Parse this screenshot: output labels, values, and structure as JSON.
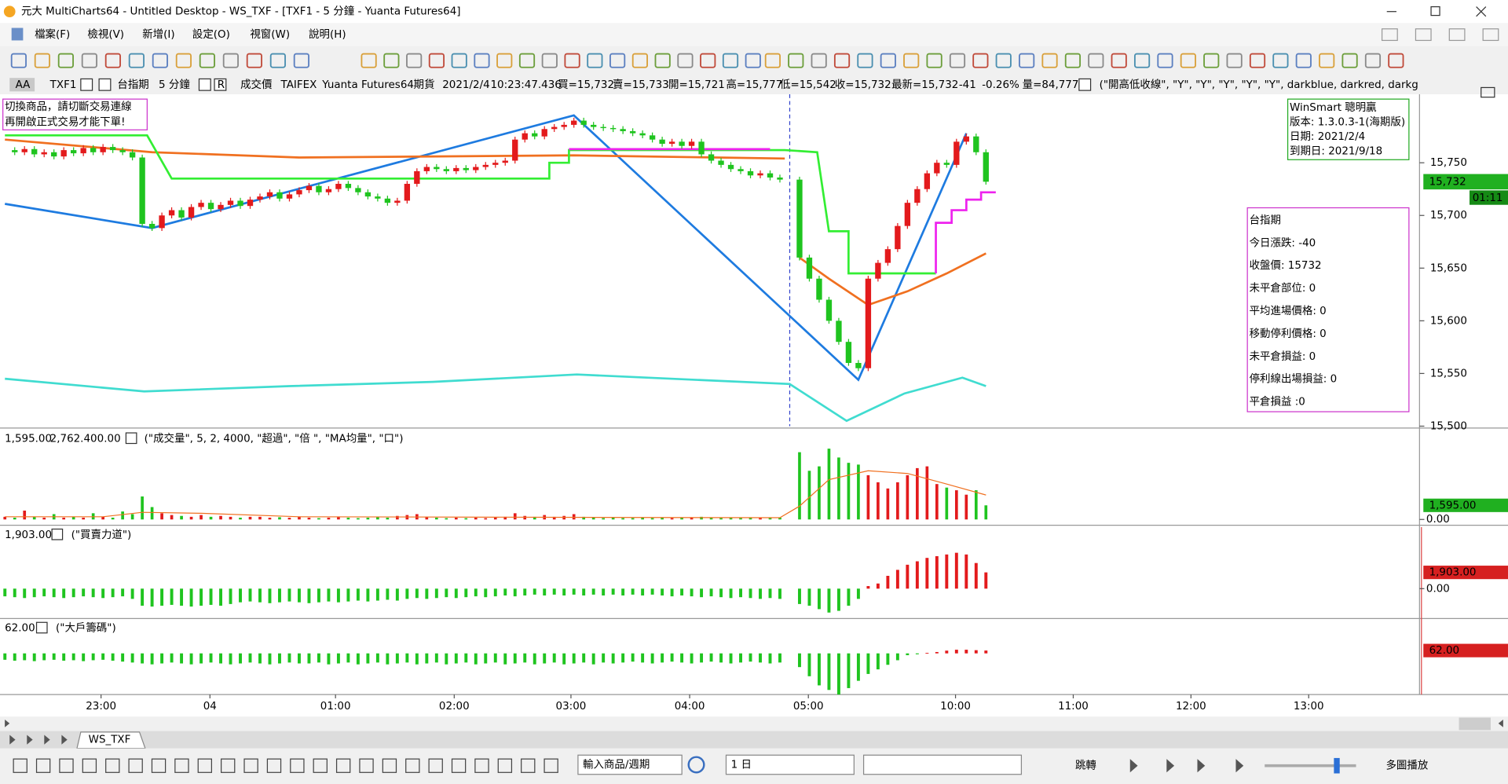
{
  "window": {
    "title": "元大 MultiCharts64 - Untitled Desktop - WS_TXF - [TXF1 - 5 分鐘 - Yuanta Futures64]"
  },
  "menu": [
    "檔案(F)",
    "檢視(V)",
    "新增(I)",
    "設定(O)",
    "視窗(W)",
    "說明(H)"
  ],
  "status": {
    "style": "AA",
    "symbol": "TXF1",
    "name": "台指期",
    "interval": "5 分鐘",
    "mode": "R",
    "field": "成交價",
    "exchange": "TAIFEX",
    "source": "Yuanta Futures64",
    "kind": "期貨",
    "date": "2021/2/4",
    "time": "10:23:47.436",
    "bid": "買=15,732",
    "ask": "賣=15,733",
    "open": "開=15,721",
    "high": "高=15,777",
    "low": "低=15,542",
    "close": "收=15,732",
    "last": "最新=15,732",
    "change": "-41",
    "change_pct": "-0.26%",
    "volume": "量=84,777",
    "study": "(\"開高低收線\", \"Y\", \"Y\", \"Y\", \"Y\", \"Y\", darkblue, darkred, darkg"
  },
  "warning": [
    "切換商品，請切斷交易連線",
    "再開啟正式交易才能下單!"
  ],
  "winsmart": [
    "WinSmart 聰明贏",
    "版本: 1.3.0.3-1(海期版)",
    "日期: 2021/2/4",
    "到期日: 2021/9/18"
  ],
  "info": [
    "台指期",
    "今日漲跌: -40",
    "收盤價: 15732",
    "未平倉部位: 0",
    "平均進場價格: 0",
    "移動停利價格: 0",
    "未平倉損益: 0",
    "停利線出場損益: 0",
    "平倉損益 :0"
  ],
  "chart_data": [
    {
      "type": "candlestick",
      "x": [
        0,
        1,
        2,
        3,
        4,
        5,
        6,
        7,
        8,
        9,
        10,
        11,
        12,
        13,
        14,
        15,
        16,
        17,
        18,
        19,
        20,
        21,
        22,
        23,
        24,
        25,
        26,
        27,
        28,
        29,
        30,
        31,
        32,
        33,
        34,
        35,
        36,
        37,
        38,
        39,
        40,
        41,
        42,
        43,
        44,
        45,
        46,
        47,
        48,
        49,
        50,
        51,
        52,
        53,
        54,
        55,
        56,
        57,
        58,
        59,
        60,
        61,
        62,
        63,
        64,
        65,
        66,
        67,
        68,
        69,
        70,
        71,
        72,
        73,
        74,
        75,
        76,
        77,
        78,
        79,
        80,
        81,
        82,
        83,
        84,
        85,
        86,
        87,
        88,
        89,
        90,
        91,
        92,
        93,
        94,
        95,
        96,
        97,
        98,
        99,
        100
      ],
      "close": [
        15762,
        15760,
        15763,
        15758,
        15760,
        15756,
        15762,
        15759,
        15764,
        15760,
        15765,
        15762,
        15760,
        15755,
        15692,
        15688,
        15700,
        15705,
        15698,
        15708,
        15712,
        15706,
        15710,
        15714,
        15709,
        15715,
        15718,
        15722,
        15716,
        15720,
        15724,
        15728,
        15722,
        15725,
        15730,
        15726,
        15722,
        15718,
        15716,
        15712,
        15714,
        15730,
        15742,
        15746,
        15744,
        15742,
        15745,
        15743,
        15746,
        15748,
        15750,
        15752,
        15772,
        15778,
        15775,
        15782,
        15784,
        15786,
        15790,
        15786,
        15784,
        15783,
        15782,
        15780,
        15778,
        15776,
        15772,
        15768,
        15770,
        15766,
        15770,
        15758,
        15752,
        15748,
        15744,
        15742,
        15738,
        15740,
        15736,
        15734,
        null,
        15660,
        15640,
        15620,
        15600,
        15580,
        15560,
        15555,
        15640,
        15655,
        15668,
        15690,
        15712,
        15725,
        15740,
        15750,
        15748,
        15770,
        15775,
        15760,
        15732
      ],
      "up_color": "#e31a1c",
      "down_color": "#1fc41f",
      "xlim": [
        -0.5,
        144.1
      ],
      "ylim": [
        15500,
        15815
      ],
      "yticks": [
        {
          "value": 15500,
          "label": "15,500"
        },
        {
          "value": 15550,
          "label": "15,550"
        },
        {
          "value": 15600,
          "label": "15,600"
        },
        {
          "value": 15650,
          "label": "15,650"
        },
        {
          "value": 15700,
          "label": "15,700"
        },
        {
          "value": 15750,
          "label": "15,750"
        }
      ],
      "lines": [
        {
          "color": "#1e7be0",
          "x": [
            0,
            15,
            58,
            87,
            98
          ],
          "values": [
            15711,
            15688,
            15795,
            15544,
            15778
          ]
        },
        {
          "color": "#f07020",
          "x": [
            0,
            15,
            30,
            58,
            79.5,
            80,
            81,
            84,
            88,
            92,
            96,
            100
          ],
          "values": [
            15772,
            15760,
            15755,
            15757,
            15754,
            null,
            15660,
            15640,
            15615,
            15628,
            15645,
            15664
          ]
        },
        {
          "color": "#33ee33",
          "x": [
            0,
            14.5,
            17,
            55.5,
            55.5,
            57.5,
            57.5,
            79.5,
            82.8,
            84,
            86,
            86,
            94.9
          ],
          "values": [
            15776,
            15776,
            15735,
            15735,
            15750,
            15750,
            15762,
            15762,
            15760,
            15685,
            15685,
            15645,
            15645
          ]
        },
        {
          "color": "#ee22ee",
          "x": [
            57.5,
            78,
            79,
            94.9,
            94.9,
            96.5,
            96.5,
            98,
            98,
            99.5,
            99.5,
            101
          ],
          "values": [
            15763,
            15763,
            null,
            15645,
            15693,
            15693,
            15705,
            15705,
            15715,
            15715,
            15722,
            15722
          ]
        },
        {
          "color": "#40dcd0",
          "x": [
            0,
            14.2,
            29,
            43.6,
            58.3,
            80,
            85.8,
            91.7,
            97.6,
            100
          ],
          "values": [
            15545,
            15533,
            15538,
            15542,
            15549,
            15540,
            15505,
            15531,
            15546,
            15538
          ]
        }
      ],
      "last_label": "15,732",
      "countdown": "01:11"
    },
    {
      "type": "bar",
      "values": [
        300,
        200,
        1000,
        300,
        200,
        600,
        200,
        300,
        200,
        700,
        300,
        200,
        900,
        600,
        2600,
        1400,
        700,
        500,
        400,
        300,
        500,
        300,
        400,
        300,
        200,
        300,
        300,
        200,
        250,
        200,
        300,
        200,
        150,
        200,
        250,
        200,
        150,
        200,
        300,
        200,
        400,
        500,
        600,
        300,
        200,
        150,
        200,
        150,
        200,
        150,
        200,
        300,
        700,
        400,
        300,
        500,
        300,
        400,
        600,
        300,
        200,
        150,
        200,
        150,
        150,
        200,
        150,
        200,
        150,
        200,
        250,
        300,
        200,
        150,
        200,
        150,
        200,
        150,
        200,
        200,
        null,
        7600,
        5500,
        6000,
        8000,
        7000,
        6400,
        6200,
        5000,
        4200,
        3500,
        4200,
        5000,
        5800,
        6000,
        4000,
        3600,
        3300,
        2800,
        3300,
        1595
      ],
      "xlim": [
        -0.5,
        144.1
      ],
      "ylim": [
        0,
        10000
      ],
      "yticks": [
        {
          "value": 0,
          "label": "0.00"
        }
      ],
      "legend_values": [
        "1,595.00",
        "2,762.40",
        "0.00"
      ],
      "study": "(\"成交量\", 5, 2, 4000, \"超過\", \"倍 \", \"MA均量\", \"口\")",
      "last_label": "1,595.00",
      "ma": {
        "color": "#f07020",
        "x": [
          0,
          10,
          14,
          20,
          30,
          79,
          81,
          84,
          88,
          92,
          96,
          100
        ],
        "values": [
          300,
          300,
          800,
          700,
          300,
          200,
          1500,
          4500,
          5500,
          5200,
          4000,
          2762.4
        ]
      }
    },
    {
      "type": "bar",
      "values": [
        -900,
        -1000,
        -1100,
        -1000,
        -900,
        -1000,
        -1100,
        -1000,
        -900,
        -1000,
        -1100,
        -1000,
        -900,
        -1200,
        -2000,
        -2100,
        -2000,
        -1900,
        -2000,
        -2100,
        -2000,
        -1900,
        -2000,
        -1800,
        -1600,
        -1500,
        -1600,
        -1700,
        -1600,
        -1500,
        -1600,
        -1700,
        -1600,
        -1500,
        -1600,
        -1500,
        -1400,
        -1500,
        -1400,
        -1300,
        -1400,
        -1200,
        -1100,
        -1200,
        -1100,
        -1000,
        -1100,
        -1000,
        -900,
        -1000,
        -900,
        -800,
        -900,
        -800,
        -700,
        -800,
        -700,
        -800,
        -700,
        -800,
        -700,
        -800,
        -700,
        -800,
        -700,
        -800,
        -700,
        -800,
        -900,
        -800,
        -900,
        -1000,
        -900,
        -1000,
        -1100,
        -1000,
        -1100,
        -1200,
        -1100,
        -1200,
        null,
        -1800,
        -2000,
        -2400,
        -2800,
        -2600,
        -2000,
        -1200,
        300,
        600,
        1500,
        2200,
        2800,
        3200,
        3600,
        3800,
        4000,
        4200,
        4000,
        3000,
        1903
      ],
      "xlim": [
        -0.5,
        144.1
      ],
      "ylim": [
        -3500,
        7200
      ],
      "yticks": [
        {
          "value": 0,
          "label": "0.00"
        }
      ],
      "legend_value": "1,903.00",
      "study": "(\"買賣力道\")",
      "last_label": "1,903.00",
      "up_color": "#e31a1c",
      "down_color": "#1fc41f"
    },
    {
      "type": "bar",
      "values": [
        -140,
        -160,
        -150,
        -170,
        -150,
        -140,
        -160,
        -150,
        -170,
        -150,
        -140,
        -160,
        -180,
        -200,
        -220,
        -240,
        -220,
        -200,
        -220,
        -240,
        -220,
        -200,
        -220,
        -240,
        -220,
        -200,
        -220,
        -240,
        -220,
        -200,
        -220,
        -220,
        -200,
        -240,
        -220,
        -200,
        -240,
        -220,
        -200,
        -240,
        -220,
        -200,
        -240,
        -220,
        -200,
        -240,
        -220,
        -200,
        -240,
        -220,
        -200,
        -240,
        -220,
        -200,
        -240,
        -220,
        -200,
        -240,
        -220,
        -200,
        -240,
        -200,
        -220,
        -200,
        -180,
        -200,
        -220,
        -200,
        -180,
        -200,
        -220,
        -200,
        -180,
        -200,
        -220,
        -200,
        -180,
        -200,
        -220,
        -200,
        null,
        -300,
        -500,
        -700,
        -800,
        -900,
        -760,
        -600,
        -450,
        -350,
        -250,
        -150,
        -40,
        -20,
        10,
        30,
        60,
        80,
        80,
        70,
        62
      ],
      "xlim": [
        -0.5,
        144.1
      ],
      "ylim": [
        -900,
        720
      ],
      "xticks": [
        {
          "value": 9.8,
          "label": "23:00"
        },
        {
          "value": 20.9,
          "label": "04"
        },
        {
          "value": 33.7,
          "label": "01:00"
        },
        {
          "value": 45.8,
          "label": "02:00"
        },
        {
          "value": 57.7,
          "label": "03:00"
        },
        {
          "value": 69.8,
          "label": "04:00"
        },
        {
          "value": 81.9,
          "label": "05:00"
        },
        {
          "value": 96.9,
          "label": "10:00"
        },
        {
          "value": 108.9,
          "label": "11:00"
        },
        {
          "value": 120.9,
          "label": "12:00"
        },
        {
          "value": 132.9,
          "label": "13:00"
        }
      ],
      "legend_value": "62.00",
      "study": "(\"大戶籌碼\")",
      "last_label": "62.00",
      "up_color": "#e31a1c",
      "down_color": "#1fc41f"
    }
  ],
  "tabs": [
    "WS_TXF"
  ],
  "bottom_toolbar": {
    "symbol_input": "輸入商品/週期",
    "period": "1 日",
    "jump": "跳轉",
    "multi_play": "多圖播放"
  }
}
